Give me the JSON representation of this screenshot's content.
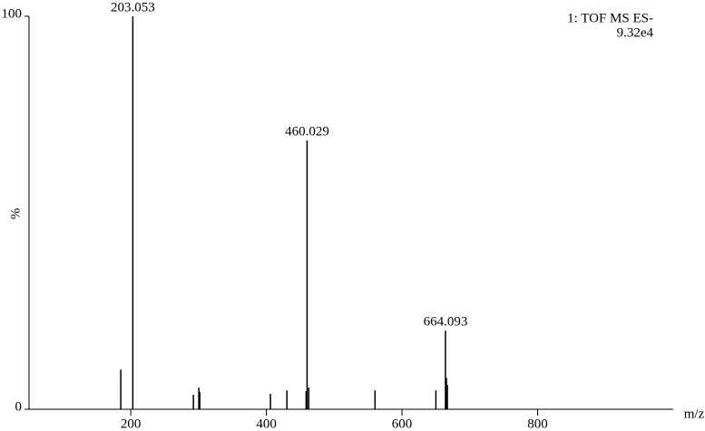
{
  "chart_data": {
    "type": "spectrum",
    "annotations": [
      "1: TOF MS ES-",
      "9.32e4"
    ],
    "xlabel": "m/z",
    "ylabel": "%",
    "x": [
      185.3,
      203.053,
      292.4,
      300.4,
      301.8,
      406,
      430.3,
      458.6,
      460.029,
      462.5,
      560.2,
      650,
      664.093,
      665.5,
      666.9
    ],
    "values": [
      10.1,
      100,
      3.7,
      5.5,
      4.4,
      3.9,
      4.8,
      4.6,
      68.4,
      5.5,
      4.8,
      4.8,
      20,
      8,
      6.2
    ],
    "labeled_peaks": [
      1,
      8,
      12
    ],
    "color": "#000000",
    "xlim": [
      50,
      1000
    ],
    "xticks": [
      200,
      400,
      600,
      800
    ],
    "ylim": [
      0,
      100
    ],
    "yticks": [
      0,
      100
    ]
  }
}
